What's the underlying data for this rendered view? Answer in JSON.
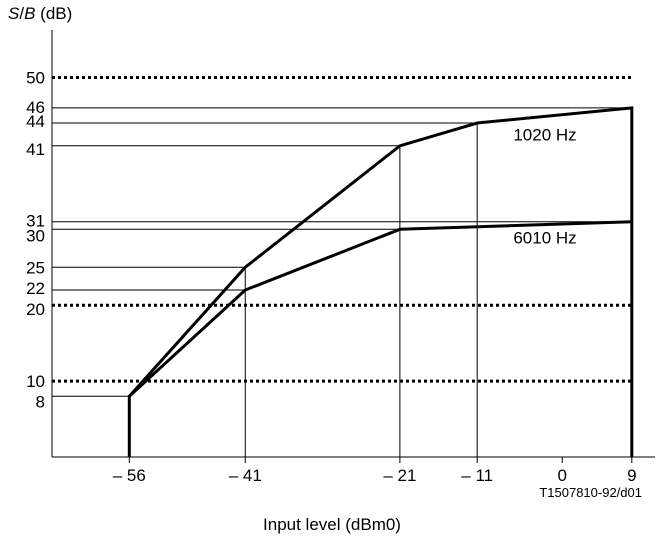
{
  "chart_data": {
    "type": "line",
    "ylabel_var_s": "S",
    "ylabel_sep": "/",
    "ylabel_var_b": "B",
    "ylabel_unit": "(dB)",
    "xlabel": "Input level (dBm0)",
    "figure_id": "T1507810-92/d01",
    "x_ticks": [
      {
        "v": -56,
        "label": "– 56"
      },
      {
        "v": -41,
        "label": "– 41"
      },
      {
        "v": -21,
        "label": "– 21"
      },
      {
        "v": -11,
        "label": "– 11"
      },
      {
        "v": 0,
        "label": "0"
      },
      {
        "v": 9,
        "label": "9"
      }
    ],
    "y_ticks": [
      {
        "v": 50,
        "label": "50"
      },
      {
        "v": 46,
        "label": "46"
      },
      {
        "v": 44,
        "label": "44"
      },
      {
        "v": 41,
        "label": "41"
      },
      {
        "v": 31,
        "label": "31"
      },
      {
        "v": 30,
        "label": "30"
      },
      {
        "v": 25,
        "label": "25"
      },
      {
        "v": 22,
        "label": "22"
      },
      {
        "v": 20,
        "label": "20"
      },
      {
        "v": 10,
        "label": "10"
      },
      {
        "v": 8,
        "label": "8"
      }
    ],
    "xlim": [
      -66,
      12
    ],
    "ylim": [
      0,
      54
    ],
    "limit_lines": [
      50,
      20,
      10
    ],
    "series": [
      {
        "name": "1020 Hz",
        "points": [
          [
            -56,
            0
          ],
          [
            -56,
            8
          ],
          [
            -41,
            25
          ],
          [
            -21,
            41
          ],
          [
            -11,
            44
          ],
          [
            9,
            46
          ],
          [
            9,
            0
          ]
        ]
      },
      {
        "name": "6010 Hz",
        "points": [
          [
            -56,
            8
          ],
          [
            -41,
            22
          ],
          [
            -21,
            30
          ],
          [
            9,
            31
          ]
        ]
      }
    ],
    "guide_lines_x": [
      {
        "x": -41,
        "y": 25
      },
      {
        "x": -21,
        "y": 41
      },
      {
        "x": -11,
        "y": 44
      }
    ],
    "guide_lines_y": [
      {
        "y": 46,
        "x": 9
      },
      {
        "y": 44,
        "x": -11
      },
      {
        "y": 41,
        "x": -21
      },
      {
        "y": 31,
        "x": 9
      },
      {
        "y": 30,
        "x": -21
      },
      {
        "y": 25,
        "x": -41
      },
      {
        "y": 22,
        "x": -41
      },
      {
        "y": 8,
        "x": -56
      }
    ]
  }
}
